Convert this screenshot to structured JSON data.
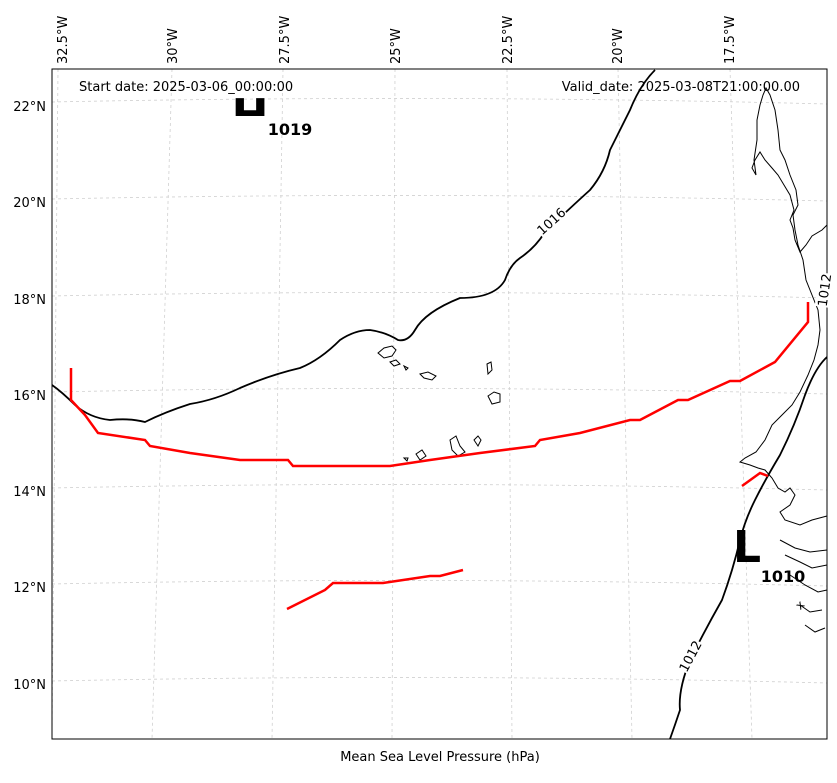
{
  "header": {
    "start_date": "Start date: 2025-03-06_00:00:00",
    "valid_date": "Valid_date: 2025-03-08T21:00:00.00"
  },
  "axis": {
    "lon_labels": [
      "32.5°W",
      "30°W",
      "27.5°W",
      "25°W",
      "22.5°W",
      "20°W",
      "17.5°W"
    ],
    "lat_labels": [
      "22°N",
      "20°N",
      "18°N",
      "16°N",
      "14°N",
      "12°N",
      "10°N"
    ],
    "xlabel": "Mean Sea Level Pressure (hPa)"
  },
  "pressure_centers": {
    "high": {
      "letter": "H",
      "value": "1019"
    },
    "low": {
      "letter": "L",
      "value": "1010"
    }
  },
  "isobars": {
    "label_1016": "1016",
    "label_1012_a": "1012",
    "label_1012_b": "1012"
  },
  "colors": {
    "front": "#ff0000",
    "isobar": "#000000",
    "grid": "#cccccc"
  }
}
